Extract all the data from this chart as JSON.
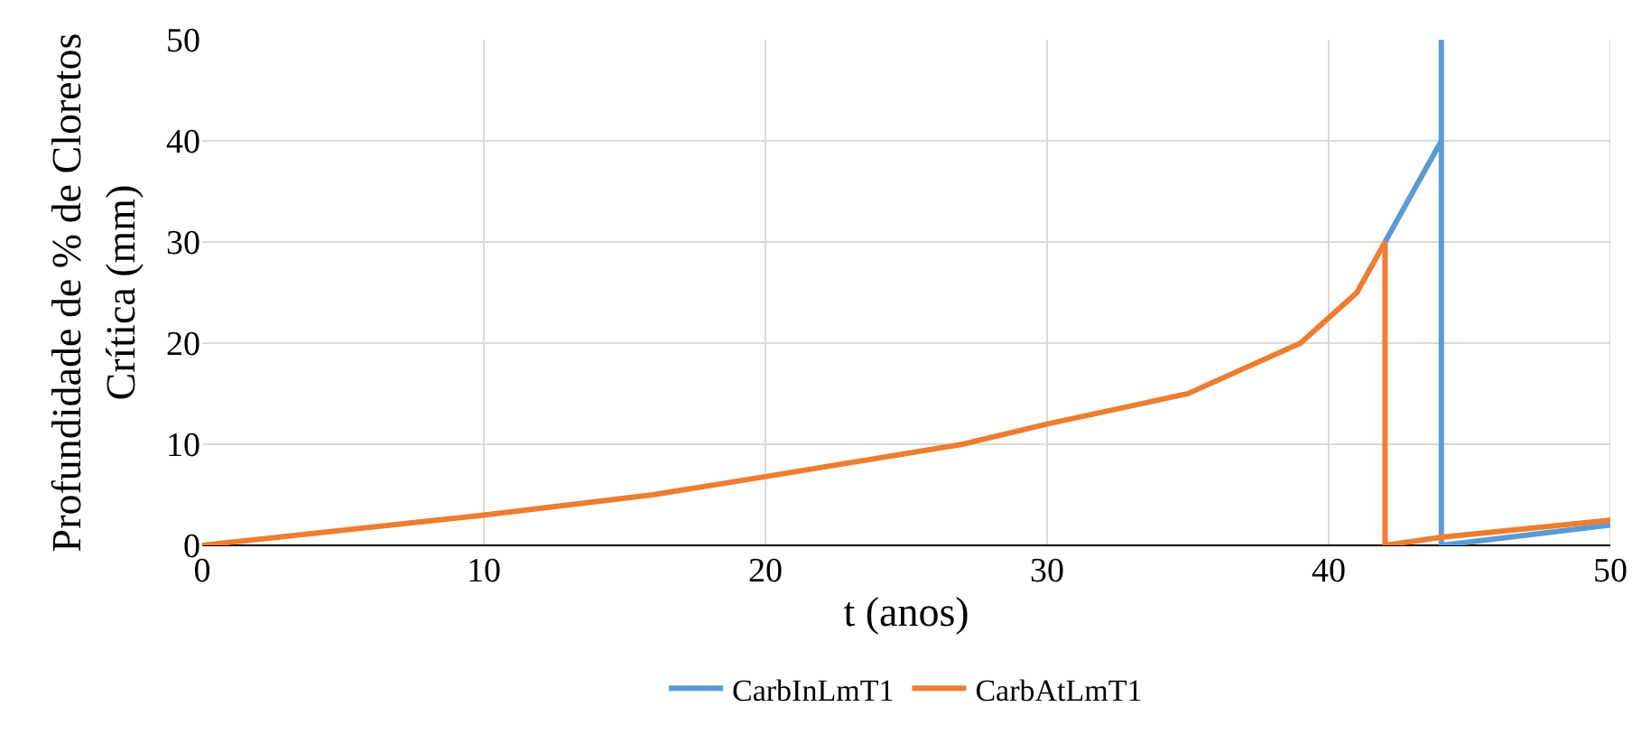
{
  "chart_data": {
    "type": "line",
    "xlabel": "t (anos)",
    "ylabel": "Profundidade de % de Cloretos Crítica (mm)",
    "xlim": [
      0,
      50
    ],
    "xticks": [
      0,
      10,
      20,
      30,
      40,
      50
    ],
    "ylim": [
      0,
      50
    ],
    "yticks": [
      0,
      10,
      20,
      30,
      40,
      50
    ],
    "grid": true,
    "legend": "bottom",
    "marker": "none",
    "line_style": "solid",
    "series": [
      {
        "name": "CarbInLmT1",
        "color": "#5b9bd5",
        "x": [
          42,
          44,
          44,
          44,
          50
        ],
        "values": [
          30,
          40,
          50,
          0,
          2
        ]
      },
      {
        "name": "CarbAtLmT1",
        "color": "#ed7d31",
        "x": [
          0,
          10,
          16,
          20,
          27,
          30,
          35,
          39,
          41,
          42,
          42,
          44,
          50
        ],
        "values": [
          0,
          3,
          5,
          6.8,
          10,
          12,
          15,
          20,
          25,
          30,
          0,
          0.8,
          2.5
        ]
      }
    ]
  }
}
